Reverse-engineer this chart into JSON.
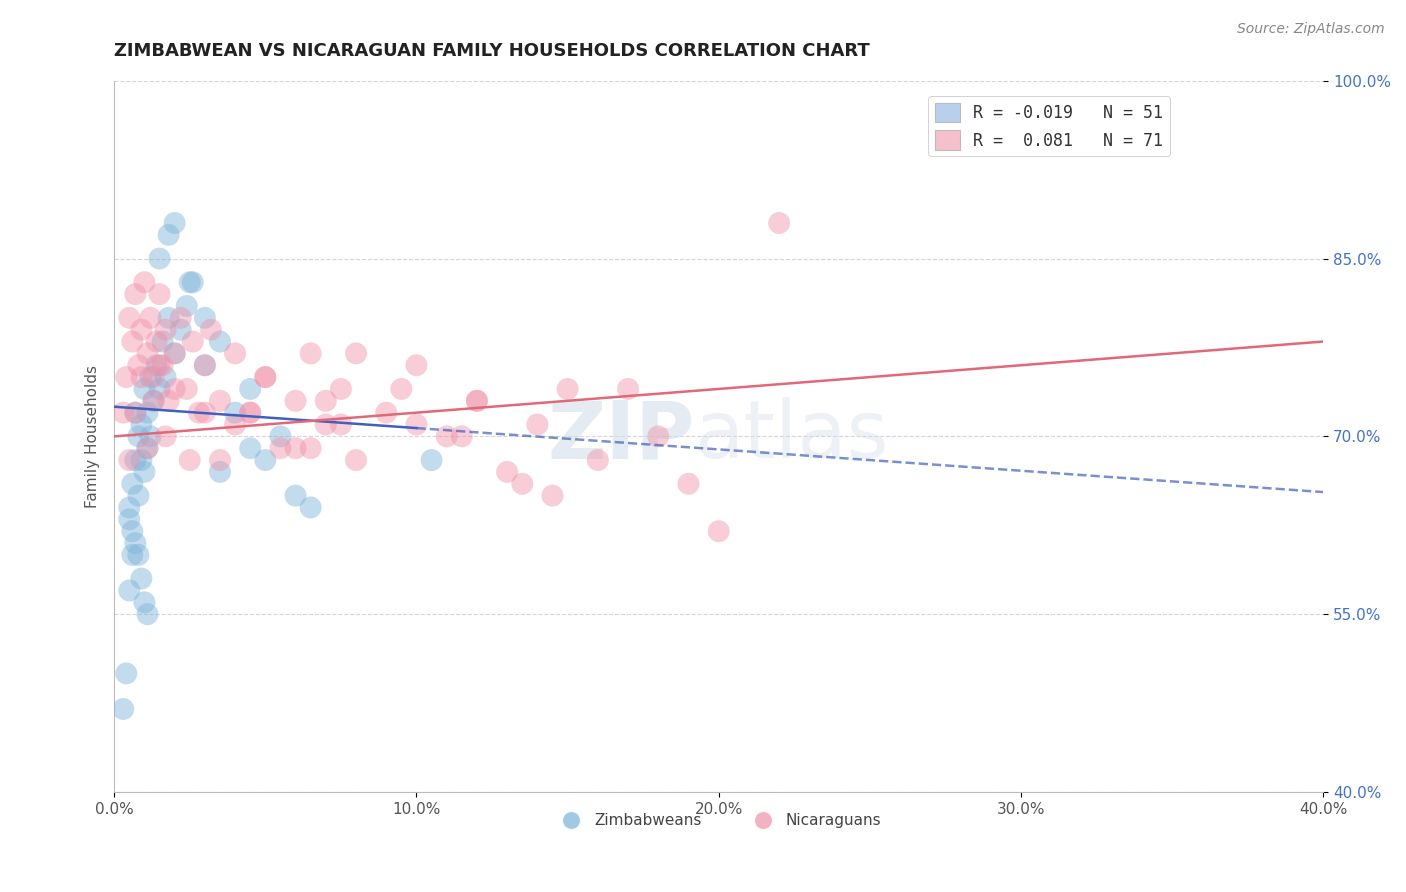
{
  "title": "ZIMBABWEAN VS NICARAGUAN FAMILY HOUSEHOLDS CORRELATION CHART",
  "source_text": "Source: ZipAtlas.com",
  "ylabel": "Family Households",
  "xlim": [
    0.0,
    40.0
  ],
  "ylim": [
    40.0,
    100.0
  ],
  "xtick_labels": [
    "0.0%",
    "10.0%",
    "20.0%",
    "30.0%",
    "40.0%"
  ],
  "xtick_values": [
    0.0,
    10.0,
    20.0,
    30.0,
    40.0
  ],
  "ytick_labels": [
    "100.0%",
    "85.0%",
    "70.0%",
    "55.0%",
    "40.0%"
  ],
  "ytick_values": [
    100.0,
    85.0,
    70.0,
    55.0,
    40.0
  ],
  "legend_blue_label": "R = -0.019   N = 51",
  "legend_pink_label": "R =  0.081   N = 71",
  "legend_blue_color": "#b8d0ec",
  "legend_pink_color": "#f5bfcc",
  "watermark_zip": "ZIP",
  "watermark_atlas": "atlas",
  "watermark_color": "#c8d8ea",
  "blue_color": "#7ab2d8",
  "pink_color": "#f090a8",
  "blue_line_color": "#4060c0",
  "pink_line_color": "#e06878",
  "background_color": "#ffffff",
  "grid_color": "#cccccc",
  "title_fontsize": 13,
  "axis_label_fontsize": 11,
  "tick_fontsize": 11,
  "source_fontsize": 10,
  "blue_line_y0": 72.5,
  "blue_line_slope": -0.18,
  "pink_line_y0": 70.0,
  "pink_line_slope": 0.2,
  "blue_solid_end": 10.0,
  "blue_x": [
    0.3,
    0.4,
    0.5,
    0.5,
    0.6,
    0.6,
    0.7,
    0.7,
    0.8,
    0.8,
    0.9,
    0.9,
    1.0,
    1.0,
    1.1,
    1.1,
    1.2,
    1.2,
    1.3,
    1.4,
    1.5,
    1.6,
    1.7,
    1.8,
    2.0,
    2.2,
    2.4,
    2.6,
    3.0,
    3.5,
    4.0,
    4.5,
    5.0,
    5.5,
    6.0,
    1.5,
    1.8,
    2.0,
    2.5,
    3.0,
    0.5,
    0.6,
    0.7,
    0.8,
    0.9,
    1.0,
    1.1,
    10.5,
    3.5,
    4.5,
    6.5
  ],
  "blue_y": [
    47,
    50,
    64,
    57,
    66,
    60,
    68,
    72,
    70,
    65,
    71,
    68,
    74,
    67,
    72,
    69,
    75,
    70,
    73,
    76,
    74,
    78,
    75,
    80,
    77,
    79,
    81,
    83,
    76,
    78,
    72,
    74,
    68,
    70,
    65,
    85,
    87,
    88,
    83,
    80,
    63,
    62,
    61,
    60,
    58,
    56,
    55,
    68,
    67,
    69,
    64
  ],
  "pink_x": [
    0.3,
    0.4,
    0.5,
    0.6,
    0.7,
    0.8,
    0.9,
    1.0,
    1.1,
    1.2,
    1.3,
    1.4,
    1.5,
    1.6,
    1.7,
    1.8,
    2.0,
    2.2,
    2.4,
    2.6,
    2.8,
    3.0,
    3.2,
    3.5,
    4.0,
    4.5,
    5.0,
    5.5,
    6.0,
    6.5,
    7.0,
    7.5,
    8.0,
    9.0,
    10.0,
    11.0,
    12.0,
    13.0,
    14.0,
    15.0,
    0.5,
    0.7,
    0.9,
    1.1,
    1.3,
    1.5,
    1.7,
    2.0,
    2.5,
    3.0,
    22.0,
    4.0,
    5.0,
    6.0,
    7.0,
    8.0,
    10.0,
    12.0,
    3.5,
    4.5,
    17.0,
    18.0,
    19.0,
    16.0,
    20.0,
    14.5,
    9.5,
    11.5,
    13.5,
    7.5,
    6.5
  ],
  "pink_y": [
    72,
    75,
    80,
    78,
    82,
    76,
    79,
    83,
    77,
    80,
    75,
    78,
    82,
    76,
    79,
    73,
    77,
    80,
    74,
    78,
    72,
    76,
    79,
    73,
    77,
    72,
    75,
    69,
    73,
    77,
    71,
    74,
    68,
    72,
    76,
    70,
    73,
    67,
    71,
    74,
    68,
    72,
    75,
    69,
    73,
    76,
    70,
    74,
    68,
    72,
    88,
    71,
    75,
    69,
    73,
    77,
    71,
    73,
    68,
    72,
    74,
    70,
    66,
    68,
    62,
    65,
    74,
    70,
    66,
    71,
    69
  ],
  "bottom_legend_labels": [
    "Zimbabweans",
    "Nicaraguans"
  ]
}
